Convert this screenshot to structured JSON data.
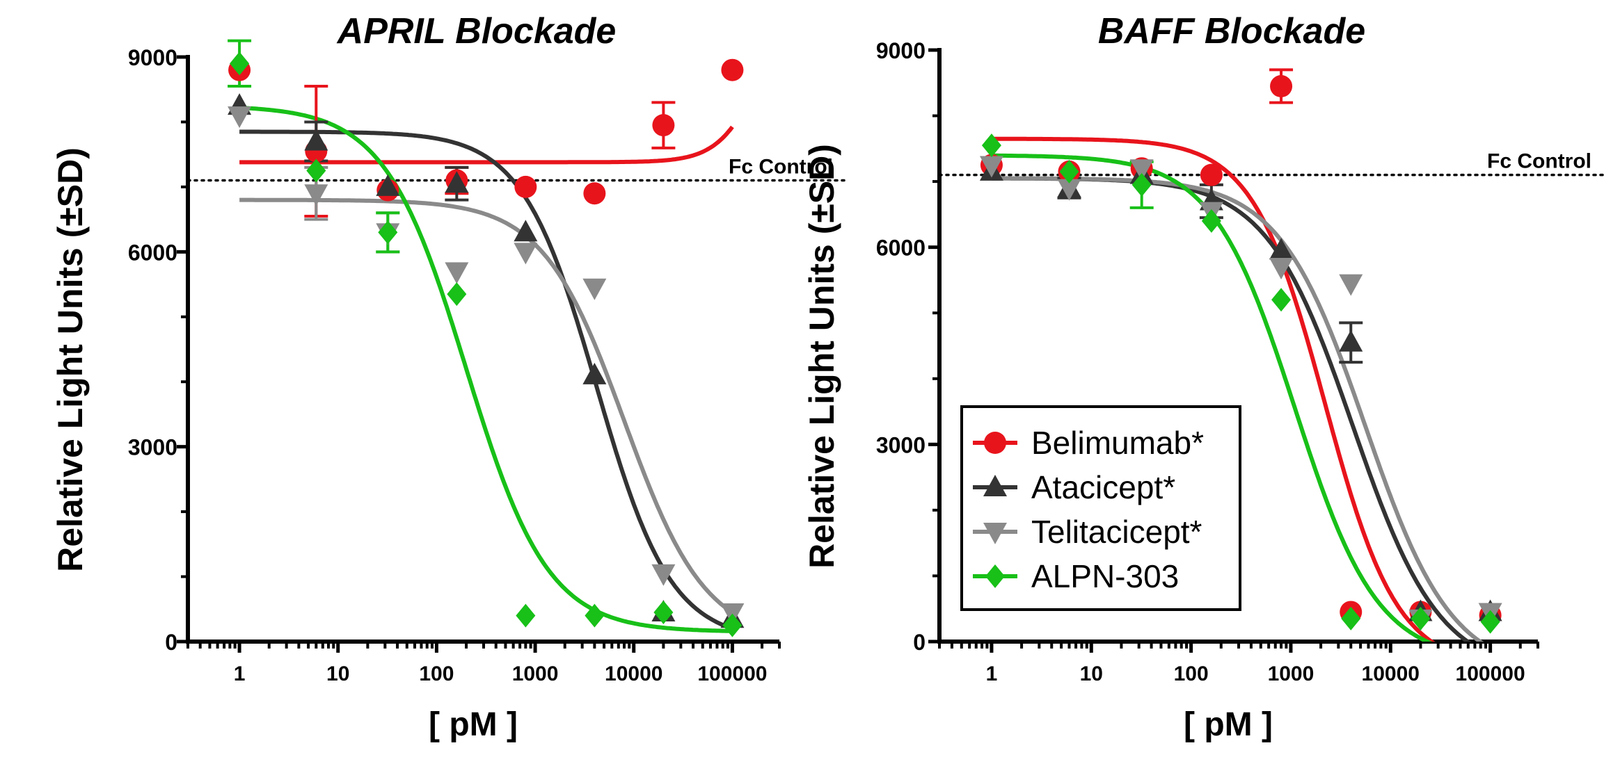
{
  "colors": {
    "belimumab": "#e8141c",
    "atacicept": "#333333",
    "telitacicept": "#8a8a8a",
    "alpn": "#18c018"
  },
  "legend": {
    "items": [
      {
        "key": "belimumab",
        "label": "Belimumab*",
        "marker": "circle"
      },
      {
        "key": "atacicept",
        "label": "Atacicept*",
        "marker": "triangle-up"
      },
      {
        "key": "telitacicept",
        "label": "Telitacicept*",
        "marker": "triangle-down"
      },
      {
        "key": "alpn",
        "label": "ALPN-303",
        "marker": "diamond"
      }
    ]
  },
  "chart_data": [
    {
      "type": "scatter",
      "title": "APRIL Blockade",
      "xlabel": "[ pM ]",
      "ylabel": "Relative Light Units (±SD)",
      "xscale": "log",
      "xlim": [
        0.3,
        300000
      ],
      "ylim": [
        0,
        9000
      ],
      "yticks": [
        "0",
        "3000",
        "6000",
        "9000"
      ],
      "xticks": [
        "1",
        "10",
        "100",
        "1000",
        "10000",
        "100000"
      ],
      "reference_line": {
        "label": "Fc Control",
        "y": 7100
      },
      "series": [
        {
          "key": "belimumab",
          "name": "Belimumab*",
          "x": [
            1,
            6,
            32,
            160,
            800,
            4000,
            20000,
            100000
          ],
          "y": [
            8800,
            7550,
            6950,
            7100,
            7000,
            6900,
            7950,
            8800
          ],
          "err": [
            0,
            1000,
            0,
            200,
            0,
            0,
            350,
            0
          ],
          "fit": {
            "model": "rising",
            "bottom": 7380,
            "top": 10100,
            "ec50": 200000,
            "hill": 2.0
          }
        },
        {
          "key": "atacicept",
          "name": "Atacicept*",
          "x": [
            1,
            6,
            32,
            160,
            800,
            4000,
            20000,
            100000
          ],
          "y": [
            8250,
            7700,
            7000,
            7050,
            6300,
            4100,
            450,
            350
          ],
          "err": [
            0,
            300,
            0,
            250,
            0,
            0,
            0,
            0
          ],
          "fit": {
            "model": "inhibition",
            "top": 7850,
            "bottom": 0,
            "ec50": 4200,
            "hill": 1.15
          }
        },
        {
          "key": "telitacicept",
          "name": "Telitacicept*",
          "x": [
            1,
            6,
            32,
            160,
            800,
            4000,
            20000,
            100000
          ],
          "y": [
            8100,
            6900,
            6300,
            5700,
            6000,
            5450,
            1050,
            450
          ],
          "err": [
            0,
            400,
            300,
            0,
            0,
            0,
            0,
            0
          ],
          "fit": {
            "model": "inhibition",
            "top": 6800,
            "bottom": 0,
            "ec50": 8000,
            "hill": 1.05
          }
        },
        {
          "key": "alpn",
          "name": "ALPN-303",
          "x": [
            1,
            6,
            32,
            160,
            800,
            4000,
            20000,
            100000
          ],
          "y": [
            8900,
            7250,
            6300,
            5350,
            400,
            400,
            450,
            250
          ],
          "err": [
            350,
            0,
            300,
            0,
            0,
            0,
            0,
            0
          ],
          "fit": {
            "model": "inhibition",
            "top": 8250,
            "bottom": 150,
            "ec50": 200,
            "hill": 1.05
          }
        }
      ]
    },
    {
      "type": "scatter",
      "title": "BAFF Blockade",
      "xlabel": "[ pM ]",
      "ylabel": "Relative Light Units (±SD)",
      "xscale": "log",
      "xlim": [
        0.3,
        300000
      ],
      "ylim": [
        0,
        9000
      ],
      "yticks": [
        "0",
        "3000",
        "6000",
        "9000"
      ],
      "xticks": [
        "1",
        "10",
        "100",
        "1000",
        "10000",
        "100000"
      ],
      "reference_line": {
        "label": "Fc Control",
        "y": 7100
      },
      "series": [
        {
          "key": "belimumab",
          "name": "Belimumab*",
          "x": [
            1,
            6,
            32,
            160,
            800,
            4000,
            20000,
            100000
          ],
          "y": [
            7250,
            7150,
            7200,
            7100,
            8450,
            450,
            450,
            400
          ],
          "err": [
            0,
            0,
            0,
            0,
            250,
            0,
            0,
            0
          ],
          "fit": {
            "model": "inhibition",
            "top": 7650,
            "bottom": -400,
            "ec50": 2200,
            "hill": 1.2
          }
        },
        {
          "key": "atacicept",
          "name": "Atacicept*",
          "x": [
            1,
            6,
            32,
            160,
            800,
            4000,
            20000,
            100000
          ],
          "y": [
            7150,
            6900,
            7100,
            6700,
            5950,
            4550,
            450,
            450
          ],
          "err": [
            0,
            150,
            0,
            250,
            0,
            300,
            0,
            0
          ],
          "fit": {
            "model": "inhibition",
            "top": 7050,
            "bottom": -500,
            "ec50": 4200,
            "hill": 1.0
          }
        },
        {
          "key": "telitacicept",
          "name": "Telitacicept*",
          "x": [
            1,
            6,
            32,
            160,
            800,
            4000,
            20000,
            100000
          ],
          "y": [
            7250,
            6900,
            7200,
            6550,
            5700,
            5450,
            350,
            450
          ],
          "err": [
            0,
            0,
            0,
            0,
            0,
            0,
            0,
            0
          ],
          "fit": {
            "model": "inhibition",
            "top": 7050,
            "bottom": -500,
            "ec50": 5600,
            "hill": 1.0
          }
        },
        {
          "key": "alpn",
          "name": "ALPN-303",
          "x": [
            1,
            6,
            32,
            160,
            800,
            4000,
            20000,
            100000
          ],
          "y": [
            7550,
            7150,
            6950,
            6400,
            5200,
            350,
            350,
            300
          ],
          "err": [
            0,
            0,
            350,
            0,
            0,
            0,
            0,
            0
          ],
          "fit": {
            "model": "inhibition",
            "top": 7400,
            "bottom": -300,
            "ec50": 1100,
            "hill": 1.05
          }
        }
      ]
    }
  ]
}
